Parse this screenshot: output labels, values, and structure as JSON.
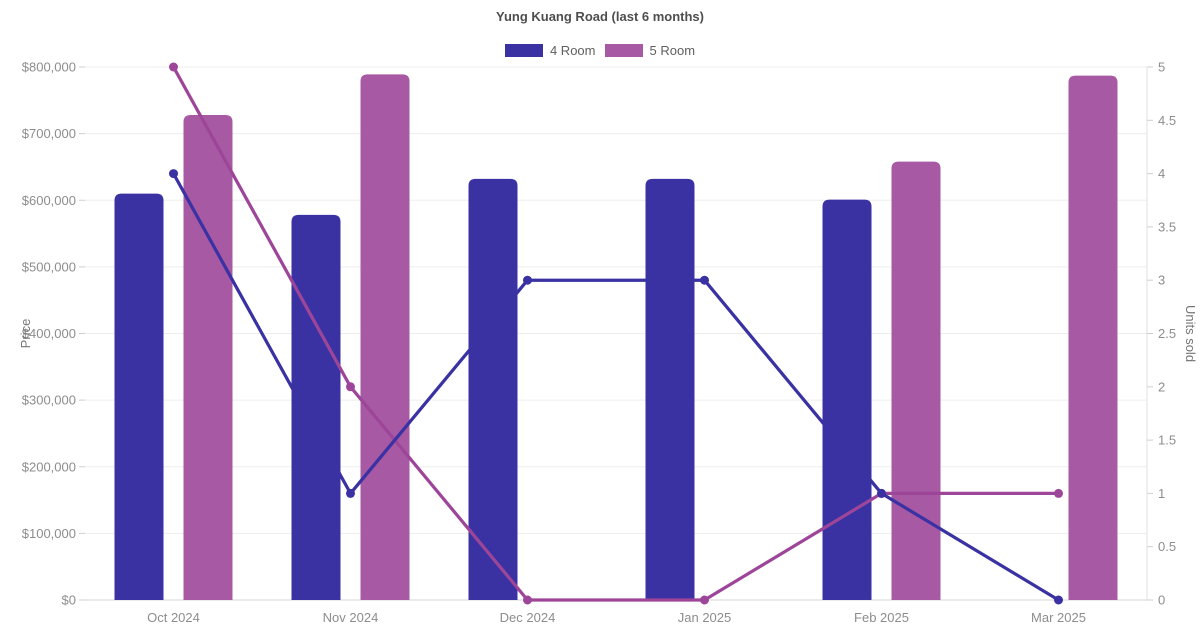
{
  "page": {
    "title": "Yung Kuang Road (last 6 months)"
  },
  "legend": {
    "items": [
      {
        "label": "4 Room",
        "color": "#3a32a3"
      },
      {
        "label": "5 Room",
        "color": "#a759a3"
      }
    ]
  },
  "chart_data": {
    "type": "bar+line",
    "title": "Yung Kuang Road (last 6 months)",
    "categories": [
      "Oct 2024",
      "Nov 2024",
      "Dec 2024",
      "Jan 2025",
      "Feb 2025",
      "Mar 2025"
    ],
    "series": [
      {
        "name": "4 Room",
        "type": "bar",
        "axis": "left",
        "color": "#3a32a3",
        "values": [
          610000,
          578000,
          632000,
          632000,
          601000,
          null
        ]
      },
      {
        "name": "5 Room",
        "type": "bar",
        "axis": "left",
        "color": "#a759a3",
        "values": [
          728000,
          789000,
          null,
          null,
          658000,
          787000
        ]
      },
      {
        "name": "4 Room",
        "type": "line",
        "axis": "right",
        "color": "#3a32a3",
        "values": [
          4,
          1,
          3,
          3,
          1,
          0
        ]
      },
      {
        "name": "5 Room",
        "type": "line",
        "axis": "right",
        "color": "#9d4699",
        "values": [
          5,
          2,
          0,
          0,
          1,
          1
        ]
      }
    ],
    "left_axis": {
      "title": "Price",
      "min": 0,
      "max": 800000,
      "tick_values": [
        0,
        100000,
        200000,
        300000,
        400000,
        500000,
        600000,
        700000,
        800000
      ],
      "tick_labels": [
        "$0",
        "$100,000",
        "$200,000",
        "$300,000",
        "$400,000",
        "$500,000",
        "$600,000",
        "$700,000",
        "$800,000"
      ]
    },
    "right_axis": {
      "title": "Units sold",
      "min": 0,
      "max": 5,
      "tick_values": [
        0,
        0.5,
        1,
        1.5,
        2,
        2.5,
        3,
        3.5,
        4,
        4.5,
        5
      ],
      "tick_labels": [
        "0",
        "0.5",
        "1",
        "1.5",
        "2",
        "2.5",
        "3",
        "3.5",
        "4",
        "4.5",
        "5"
      ]
    },
    "grid": "horizontal gridlines at left-axis ticks",
    "legend_position": "top"
  },
  "colors": {
    "background": "#ffffff",
    "gridline": "#ededed",
    "baseline": "#d6d6d6",
    "right_border": "#e2e2e2",
    "tick_mark": "#cfcfcf",
    "tick_text": "#8d8d8d",
    "axis_title_text": "#757575"
  }
}
